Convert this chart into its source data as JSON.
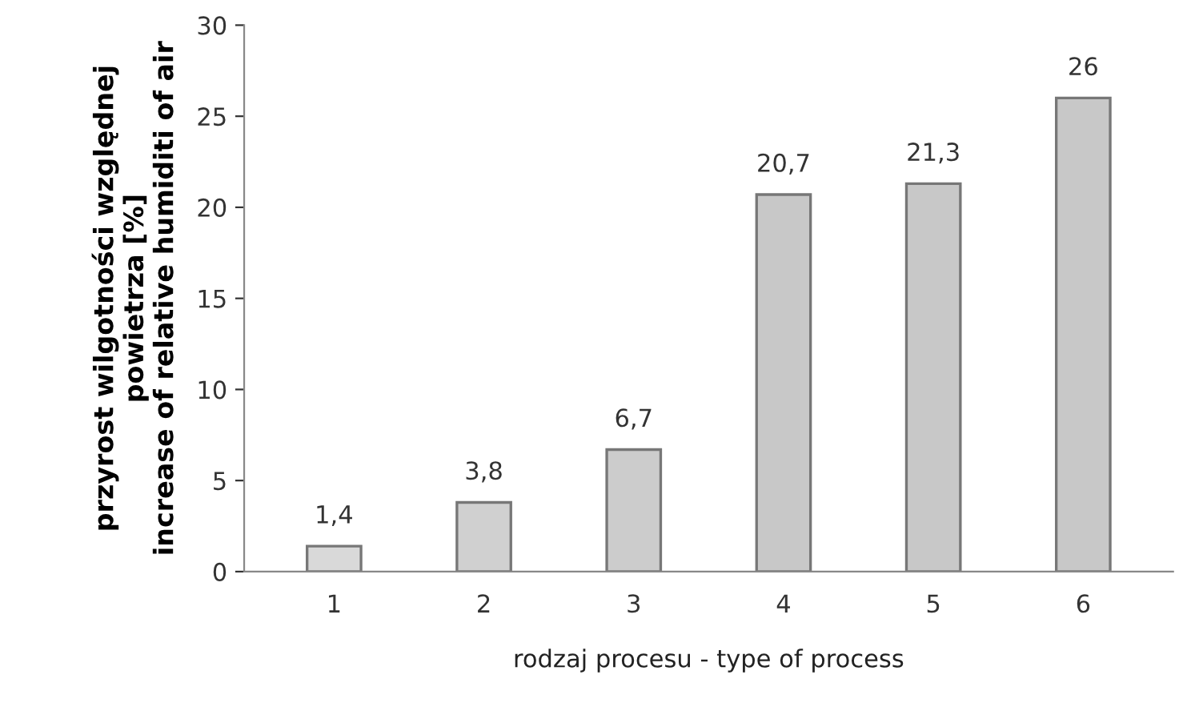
{
  "chart_data": {
    "type": "bar",
    "xlabel": "rodzaj procesu - type of process",
    "ylabel": "przyrost wilgotności względnej\npowietrza [%]\nincrease of relative humiditi of air",
    "categories": [
      "1",
      "2",
      "3",
      "4",
      "5",
      "6"
    ],
    "values": [
      1.4,
      3.8,
      6.7,
      20.7,
      21.3,
      26
    ],
    "value_labels": [
      "1,4",
      "3,8",
      "6,7",
      "20,7",
      "21,3",
      "26"
    ],
    "colors": [
      "#d9d9d9",
      "#d0d0d0",
      "#cccccc",
      "#c8c8c8",
      "#c8c8c8",
      "#c8c8c8"
    ],
    "ylim": [
      0,
      30
    ],
    "yticks": [
      0,
      5,
      10,
      15,
      20,
      25,
      30
    ],
    "grid": false,
    "legend": false
  }
}
